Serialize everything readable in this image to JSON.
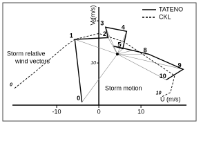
{
  "chart_data": {
    "type": "line",
    "xlabel": "U (m/s)",
    "ylabel": "V (m/s)",
    "xlim": [
      -20.5,
      20.8
    ],
    "ylim": [
      0,
      23.3
    ],
    "xticks": [
      -10,
      0,
      10
    ],
    "yticks": [
      10,
      20
    ],
    "series": [
      {
        "name": "TATENO",
        "color": "#000000",
        "style": "solid",
        "x": [
          -4,
          -5.7,
          2.2,
          1.6,
          6.6,
          5.7,
          3.5,
          8,
          11.8,
          20,
          16
        ],
        "values": [
          0.7,
          15.6,
          16,
          18.5,
          17.5,
          13.4,
          14,
          13,
          12.1,
          8.5,
          6
        ],
        "labels": [
          "0",
          "1",
          "2",
          "3",
          "4",
          "5",
          null,
          null,
          "8",
          "9",
          "10"
        ]
      },
      {
        "name": "CKL",
        "color": "#000000",
        "style": "dashed",
        "x": [
          -20,
          -15,
          -8,
          -5.7,
          0,
          3,
          6,
          12,
          18,
          17,
          15
        ],
        "values": [
          4,
          8,
          14,
          15.6,
          17,
          16,
          15,
          11,
          7,
          3,
          2
        ],
        "labels": [
          "0",
          null,
          null,
          null,
          null,
          null,
          null,
          null,
          null,
          null,
          "10"
        ]
      }
    ],
    "storm_motion": {
      "x": 4.4,
      "y": 12.1
    },
    "annotations": [
      "Storm relative",
      "wind vectors",
      "Storm motion"
    ]
  }
}
